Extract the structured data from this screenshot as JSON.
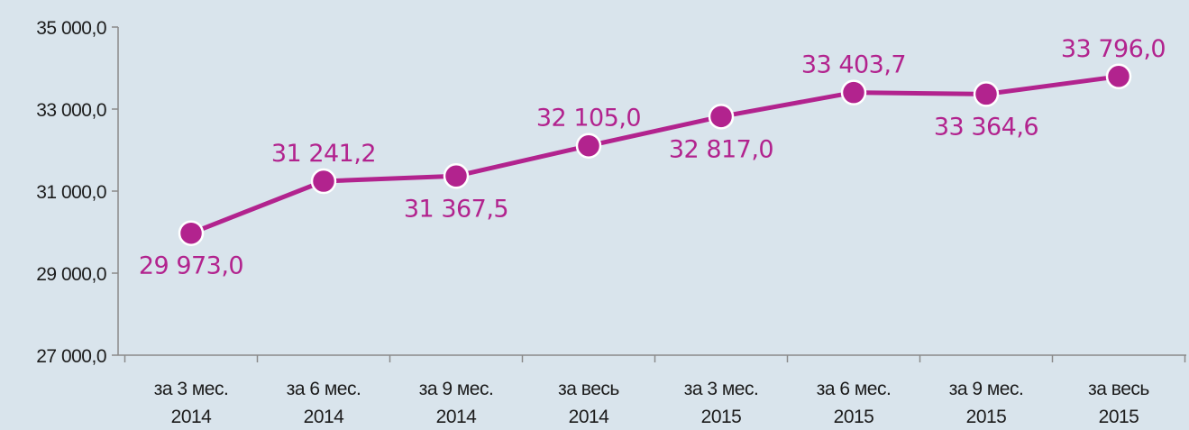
{
  "chart_data": {
    "type": "line",
    "title": "",
    "xlabel": "",
    "ylabel": "",
    "ylim": [
      27000,
      35000
    ],
    "yticks": [
      {
        "value": 35000,
        "label": "35 000,0"
      },
      {
        "value": 33000,
        "label": "33 000,0"
      },
      {
        "value": 31000,
        "label": "31 000,0"
      },
      {
        "value": 29000,
        "label": "29 000,0"
      },
      {
        "value": 27000,
        "label": "27 000,0"
      }
    ],
    "categories": [
      {
        "line1": "за 3 мес.",
        "line2": "2014"
      },
      {
        "line1": "за 6 мес.",
        "line2": "2014"
      },
      {
        "line1": "за 9 мес.",
        "line2": "2014"
      },
      {
        "line1": "за весь",
        "line2": "2014"
      },
      {
        "line1": "за 3 мес.",
        "line2": "2015"
      },
      {
        "line1": "за 6 мес.",
        "line2": "2015"
      },
      {
        "line1": "за 9 мес.",
        "line2": "2015"
      },
      {
        "line1": "за весь",
        "line2": "2015"
      }
    ],
    "series": [
      {
        "values": [
          29973.0,
          31241.2,
          31367.5,
          32105.0,
          32817.0,
          33403.7,
          33364.6,
          33796.0
        ],
        "labels": [
          "29 973,0",
          "31 241,2",
          "31 367,5",
          "32 105,0",
          "32 817,0",
          "33 403,7",
          "33 364,6",
          "33 796,0"
        ],
        "label_positions": [
          "below",
          "above",
          "below",
          "above",
          "below",
          "above",
          "below",
          "above"
        ],
        "color": "#b2238e"
      }
    ],
    "grid": false,
    "background": "#d9e4ec",
    "axis_color": "#8a8a8a",
    "text_color": "#1c1c1c"
  }
}
